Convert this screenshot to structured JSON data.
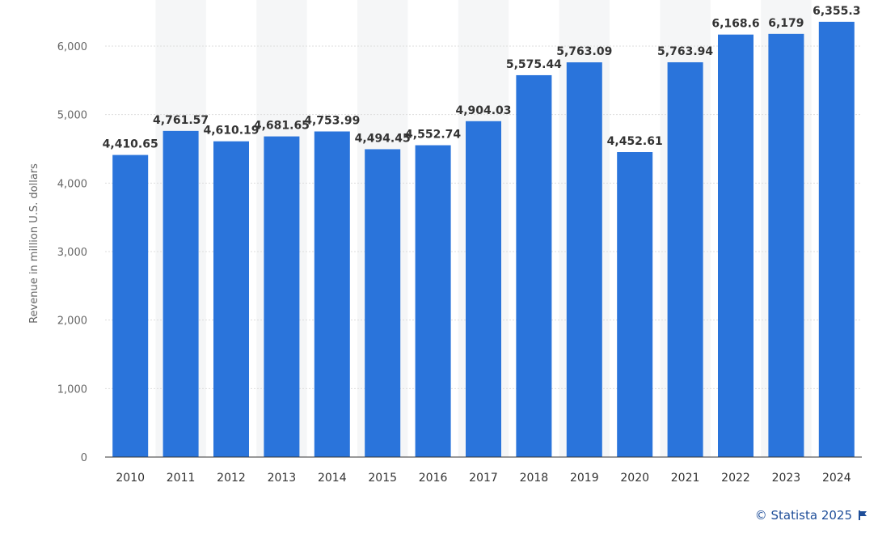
{
  "chart_data": {
    "type": "bar",
    "title": "",
    "xlabel": "",
    "ylabel": "Revenue in million U.S. dollars",
    "ylim": [
      0,
      6500
    ],
    "yticks": [
      "0",
      "1,000",
      "2,000",
      "3,000",
      "4,000",
      "5,000",
      "6,000"
    ],
    "ytick_values": [
      0,
      1000,
      2000,
      3000,
      4000,
      5000,
      6000
    ],
    "categories": [
      "2010",
      "2011",
      "2012",
      "2013",
      "2014",
      "2015",
      "2016",
      "2017",
      "2018",
      "2019",
      "2020",
      "2021",
      "2022",
      "2023",
      "2024"
    ],
    "values": [
      4410.65,
      4761.57,
      4610.19,
      4681.65,
      4753.99,
      4494.45,
      4552.74,
      4904.03,
      5575.44,
      5763.09,
      4452.61,
      5763.94,
      6168.6,
      6179,
      6355.3
    ],
    "data_labels": [
      "4,410.65",
      "4,761.57",
      "4,610.19",
      "4,681.65",
      "4,753.99",
      "4,494.45",
      "4,552.74",
      "4,904.03",
      "5,575.44",
      "5,763.09",
      "4,452.61",
      "5,763.94",
      "6,168.6",
      "6,179",
      "6,355.3"
    ],
    "bar_color": "#2a74db",
    "grid": true,
    "legend": "none"
  },
  "footer": {
    "credit": "© Statista 2025",
    "flag_icon": "flag-icon"
  }
}
